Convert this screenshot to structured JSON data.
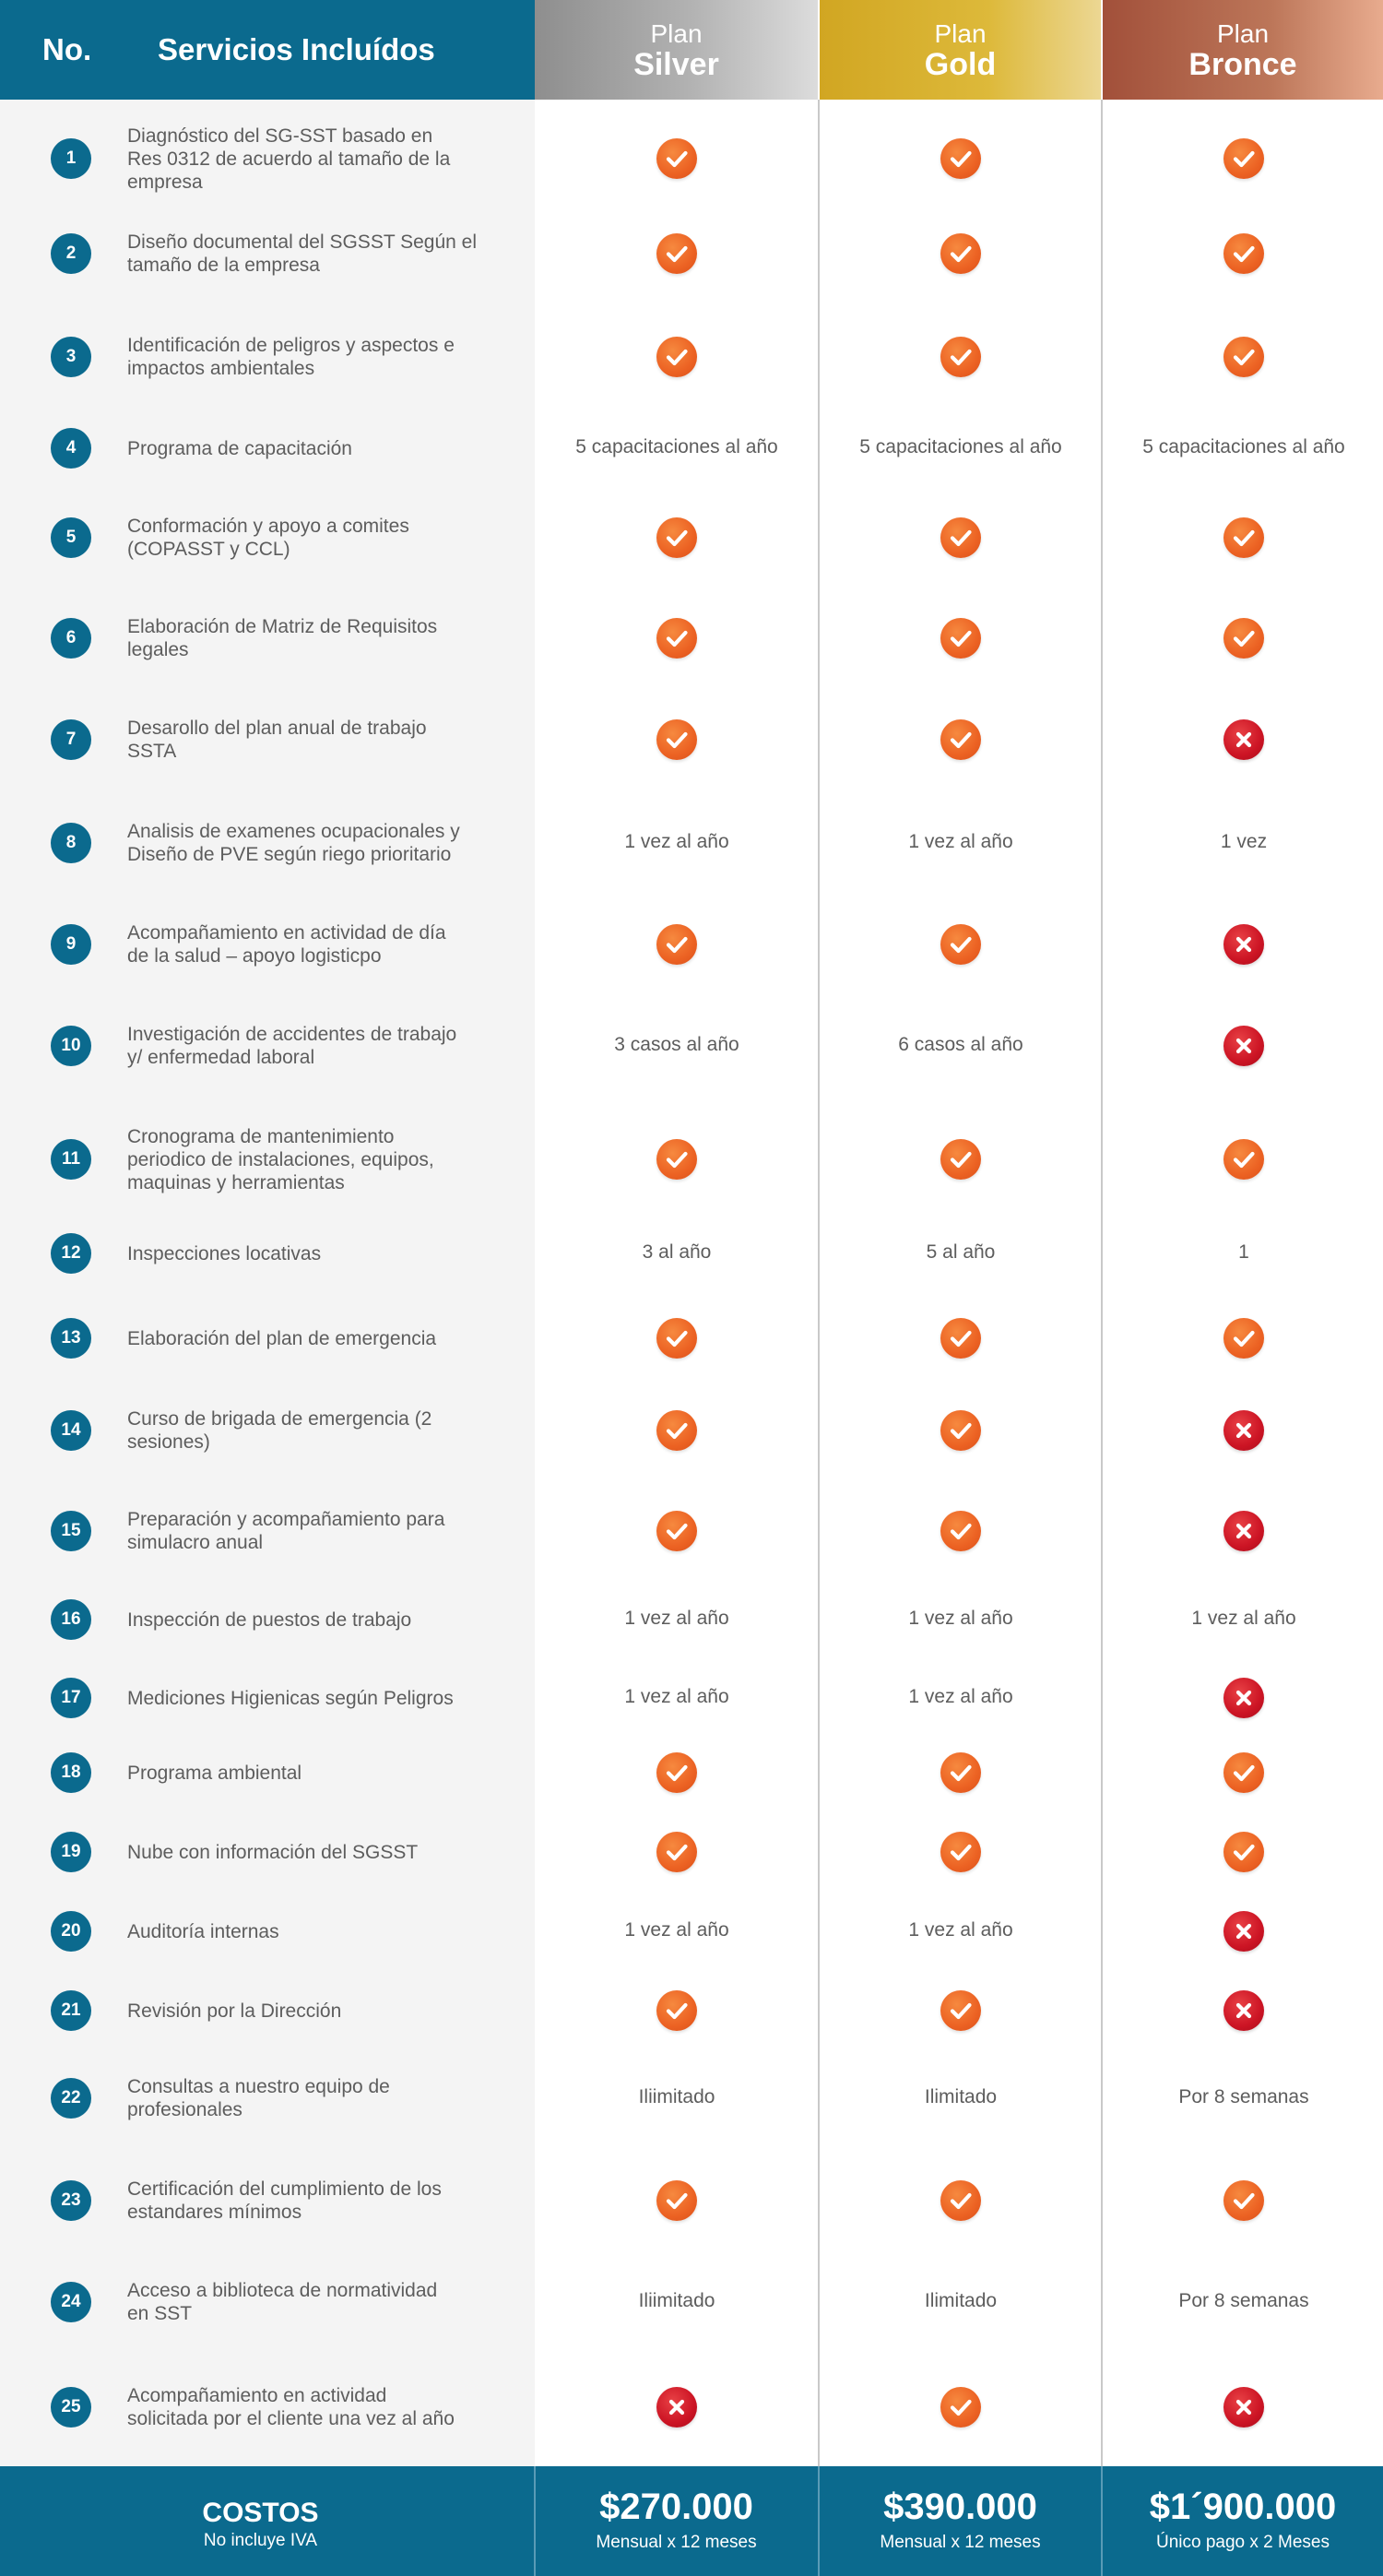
{
  "header": {
    "no_label": "No.",
    "services_label": "Servicios Incluídos",
    "plans": [
      {
        "small": "Plan",
        "big": "Silver"
      },
      {
        "small": "Plan",
        "big": "Gold"
      },
      {
        "small": "Plan",
        "big": "Bronce"
      }
    ]
  },
  "colors": {
    "primary_teal": "#0b6a8e",
    "check_orange": "#ec6223",
    "cross_red": "#cc1424",
    "silver": "#9e9e9e",
    "gold": "#d6ad2b",
    "bronze": "#b06a4f"
  },
  "rows": [
    {
      "num": "1",
      "service": [
        "Diagnóstico del SG-SST basado en",
        "Res 0312 de acuerdo al tamaño de la",
        "empresa"
      ],
      "cells": [
        {
          "type": "check"
        },
        {
          "type": "check"
        },
        {
          "type": "check"
        }
      ]
    },
    {
      "num": "2",
      "service": [
        "Diseño documental del SGSST Según el",
        "tamaño de la empresa"
      ],
      "cells": [
        {
          "type": "check"
        },
        {
          "type": "check"
        },
        {
          "type": "check"
        }
      ]
    },
    {
      "num": "3",
      "service": [
        "Identificación de  peligros y aspectos e",
        "impactos ambientales"
      ],
      "cells": [
        {
          "type": "check"
        },
        {
          "type": "check"
        },
        {
          "type": "check"
        }
      ]
    },
    {
      "num": "4",
      "service": [
        "Programa de capacitación"
      ],
      "cells": [
        {
          "type": "text",
          "text": "5 capacitaciones al año"
        },
        {
          "type": "text",
          "text": "5 capacitaciones al año"
        },
        {
          "type": "text",
          "text": "5 capacitaciones al año"
        }
      ]
    },
    {
      "num": "5",
      "service": [
        "Conformación y apoyo a comites",
        "(COPASST y CCL)"
      ],
      "cells": [
        {
          "type": "check"
        },
        {
          "type": "check"
        },
        {
          "type": "check"
        }
      ]
    },
    {
      "num": "6",
      "service": [
        "Elaboración de Matriz de Requisitos",
        "legales"
      ],
      "cells": [
        {
          "type": "check"
        },
        {
          "type": "check"
        },
        {
          "type": "check"
        }
      ]
    },
    {
      "num": "7",
      "service": [
        "Desarollo del plan anual de trabajo",
        "SSTA"
      ],
      "cells": [
        {
          "type": "check"
        },
        {
          "type": "check"
        },
        {
          "type": "cross"
        }
      ]
    },
    {
      "num": "8",
      "service": [
        "Analisis de examenes ocupacionales y",
        "Diseño de PVE según riego prioritario"
      ],
      "cells": [
        {
          "type": "text",
          "text": "1 vez al año"
        },
        {
          "type": "text",
          "text": "1 vez al año"
        },
        {
          "type": "text",
          "text": "1 vez"
        }
      ]
    },
    {
      "num": "9",
      "service": [
        "Acompañamiento en actividad de día",
        "de la salud – apoyo logisticpo"
      ],
      "cells": [
        {
          "type": "check"
        },
        {
          "type": "check"
        },
        {
          "type": "cross"
        }
      ]
    },
    {
      "num": "10",
      "service": [
        "Investigación de accidentes de trabajo",
        "y/ enfermedad laboral"
      ],
      "cells": [
        {
          "type": "text",
          "text": "3 casos al año"
        },
        {
          "type": "text",
          "text": "6 casos al año"
        },
        {
          "type": "cross"
        }
      ]
    },
    {
      "num": "11",
      "service": [
        "Cronograma de mantenimiento",
        "periodico de instalaciones, equipos,",
        "maquinas y herramientas"
      ],
      "cells": [
        {
          "type": "check"
        },
        {
          "type": "check"
        },
        {
          "type": "check"
        }
      ]
    },
    {
      "num": "12",
      "service": [
        "Inspecciones locativas"
      ],
      "cells": [
        {
          "type": "text",
          "text": "3 al año"
        },
        {
          "type": "text",
          "text": "5 al año"
        },
        {
          "type": "text",
          "text": "1"
        }
      ]
    },
    {
      "num": "13",
      "service": [
        "Elaboración del plan de emergencia"
      ],
      "cells": [
        {
          "type": "check"
        },
        {
          "type": "check"
        },
        {
          "type": "check"
        }
      ]
    },
    {
      "num": "14",
      "service": [
        "Curso de brigada de emergencia (2",
        "sesiones)"
      ],
      "cells": [
        {
          "type": "check"
        },
        {
          "type": "check"
        },
        {
          "type": "cross"
        }
      ]
    },
    {
      "num": "15",
      "service": [
        "Preparación y acompañamiento para",
        "simulacro anual"
      ],
      "cells": [
        {
          "type": "check"
        },
        {
          "type": "check"
        },
        {
          "type": "cross"
        }
      ]
    },
    {
      "num": "16",
      "service": [
        "Inspección de puestos de trabajo"
      ],
      "cells": [
        {
          "type": "text",
          "text": "1 vez al año"
        },
        {
          "type": "text",
          "text": "1 vez al año"
        },
        {
          "type": "text",
          "text": "1 vez al año"
        }
      ]
    },
    {
      "num": "17",
      "service": [
        "Mediciones Higienicas según Peligros"
      ],
      "cells": [
        {
          "type": "text",
          "text": "1 vez al año"
        },
        {
          "type": "text",
          "text": "1 vez al año"
        },
        {
          "type": "cross"
        }
      ]
    },
    {
      "num": "18",
      "service": [
        "Programa ambiental"
      ],
      "cells": [
        {
          "type": "check"
        },
        {
          "type": "check"
        },
        {
          "type": "check"
        }
      ]
    },
    {
      "num": "19",
      "service": [
        "Nube con información del SGSST"
      ],
      "cells": [
        {
          "type": "check"
        },
        {
          "type": "check"
        },
        {
          "type": "check"
        }
      ]
    },
    {
      "num": "20",
      "service": [
        "Auditoría internas"
      ],
      "cells": [
        {
          "type": "text",
          "text": "1 vez al año"
        },
        {
          "type": "text",
          "text": "1 vez al año"
        },
        {
          "type": "cross"
        }
      ]
    },
    {
      "num": "21",
      "service": [
        "Revisión por la Dirección"
      ],
      "cells": [
        {
          "type": "check"
        },
        {
          "type": "check"
        },
        {
          "type": "cross"
        }
      ]
    },
    {
      "num": "22",
      "service": [
        "Consultas a nuestro equipo de",
        "profesionales"
      ],
      "cells": [
        {
          "type": "text",
          "text": "Iliimitado"
        },
        {
          "type": "text",
          "text": "Ilimitado"
        },
        {
          "type": "text",
          "text": "Por 8 semanas"
        }
      ]
    },
    {
      "num": "23",
      "service": [
        "Certificación del cumplimiento de los",
        "estandares mínimos"
      ],
      "cells": [
        {
          "type": "check"
        },
        {
          "type": "check"
        },
        {
          "type": "check"
        }
      ]
    },
    {
      "num": "24",
      "service": [
        "Acceso a biblioteca de normatividad",
        "en SST"
      ],
      "cells": [
        {
          "type": "text",
          "text": "Iliimitado"
        },
        {
          "type": "text",
          "text": "Ilimitado"
        },
        {
          "type": "text",
          "text": "Por 8 semanas"
        }
      ]
    },
    {
      "num": "25",
      "service": [
        "Acompañamiento en actividad",
        "solicitada por el cliente una vez al año"
      ],
      "cells": [
        {
          "type": "cross"
        },
        {
          "type": "check"
        },
        {
          "type": "cross"
        }
      ]
    }
  ],
  "footer": {
    "label": "COSTOS",
    "sublabel": "No incluye IVA",
    "prices": [
      {
        "price": "$270.000",
        "note": "Mensual x 12 meses"
      },
      {
        "price": "$390.000",
        "note": "Mensual x 12 meses"
      },
      {
        "price": "$1´900.000",
        "note": "Único pago x 2 Meses"
      }
    ]
  }
}
